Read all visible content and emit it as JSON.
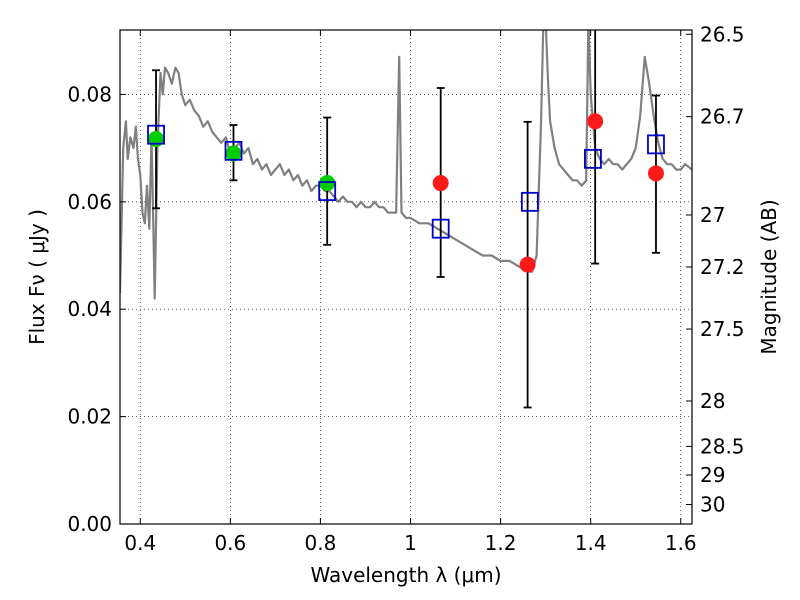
{
  "chart_data": {
    "type": "scatter",
    "xlabel": "Wavelength  λ (μm)",
    "ylabel": "Flux  Fν  ( μJy )",
    "y2label": "Magnitude (AB)",
    "xlim": [
      0.355,
      1.625
    ],
    "ylim": [
      0.0,
      0.092
    ],
    "grid": true,
    "x_ticks": [
      {
        "value": 0.4,
        "label": "0.4"
      },
      {
        "value": 0.6,
        "label": "0.6"
      },
      {
        "value": 0.8,
        "label": "0.8"
      },
      {
        "value": 1.0,
        "label": "1"
      },
      {
        "value": 1.2,
        "label": "1.2"
      },
      {
        "value": 1.4,
        "label": "1.4"
      },
      {
        "value": 1.6,
        "label": "1.6"
      }
    ],
    "y_ticks": [
      {
        "value": 0.0,
        "label": "0.00"
      },
      {
        "value": 0.02,
        "label": "0.02"
      },
      {
        "value": 0.04,
        "label": "0.04"
      },
      {
        "value": 0.06,
        "label": "0.06"
      },
      {
        "value": 0.08,
        "label": "0.08"
      }
    ],
    "y2_ticks": [
      {
        "value": 26.5,
        "label": "26.5"
      },
      {
        "value": 26.7,
        "label": "26.7"
      },
      {
        "value": 27.0,
        "label": "27"
      },
      {
        "value": 27.2,
        "label": "27.2"
      },
      {
        "value": 27.5,
        "label": "27.5"
      },
      {
        "value": 28.0,
        "label": "28"
      },
      {
        "value": 28.5,
        "label": "28.5"
      },
      {
        "value": 29.0,
        "label": "29"
      },
      {
        "value": 30.0,
        "label": "30"
      }
    ],
    "series": [
      {
        "kind": "line",
        "color": "#808080",
        "points": [
          [
            0.355,
            0.043
          ],
          [
            0.362,
            0.07
          ],
          [
            0.368,
            0.075
          ],
          [
            0.372,
            0.068
          ],
          [
            0.378,
            0.072
          ],
          [
            0.385,
            0.07
          ],
          [
            0.39,
            0.074
          ],
          [
            0.395,
            0.068
          ],
          [
            0.4,
            0.065
          ],
          [
            0.405,
            0.058
          ],
          [
            0.41,
            0.056
          ],
          [
            0.415,
            0.063
          ],
          [
            0.42,
            0.055
          ],
          [
            0.425,
            0.072
          ],
          [
            0.428,
            0.06
          ],
          [
            0.432,
            0.042
          ],
          [
            0.438,
            0.07
          ],
          [
            0.445,
            0.084
          ],
          [
            0.45,
            0.08
          ],
          [
            0.455,
            0.085
          ],
          [
            0.462,
            0.084
          ],
          [
            0.47,
            0.082
          ],
          [
            0.478,
            0.085
          ],
          [
            0.485,
            0.084
          ],
          [
            0.492,
            0.08
          ],
          [
            0.5,
            0.078
          ],
          [
            0.51,
            0.079
          ],
          [
            0.52,
            0.077
          ],
          [
            0.53,
            0.076
          ],
          [
            0.54,
            0.074
          ],
          [
            0.55,
            0.075
          ],
          [
            0.56,
            0.073
          ],
          [
            0.57,
            0.072
          ],
          [
            0.58,
            0.071
          ],
          [
            0.59,
            0.072
          ],
          [
            0.6,
            0.069
          ],
          [
            0.61,
            0.07
          ],
          [
            0.62,
            0.071
          ],
          [
            0.63,
            0.069
          ],
          [
            0.64,
            0.07
          ],
          [
            0.65,
            0.067
          ],
          [
            0.66,
            0.068
          ],
          [
            0.67,
            0.066
          ],
          [
            0.68,
            0.067
          ],
          [
            0.69,
            0.065
          ],
          [
            0.7,
            0.066
          ],
          [
            0.71,
            0.067
          ],
          [
            0.72,
            0.065
          ],
          [
            0.73,
            0.066
          ],
          [
            0.74,
            0.064
          ],
          [
            0.75,
            0.065
          ],
          [
            0.76,
            0.063
          ],
          [
            0.77,
            0.064
          ],
          [
            0.78,
            0.062
          ],
          [
            0.79,
            0.063
          ],
          [
            0.8,
            0.063
          ],
          [
            0.81,
            0.062
          ],
          [
            0.82,
            0.062
          ],
          [
            0.83,
            0.061
          ],
          [
            0.84,
            0.06
          ],
          [
            0.85,
            0.061
          ],
          [
            0.86,
            0.06
          ],
          [
            0.87,
            0.06
          ],
          [
            0.88,
            0.059
          ],
          [
            0.89,
            0.06
          ],
          [
            0.9,
            0.059
          ],
          [
            0.91,
            0.059
          ],
          [
            0.92,
            0.06
          ],
          [
            0.93,
            0.059
          ],
          [
            0.94,
            0.059
          ],
          [
            0.95,
            0.058
          ],
          [
            0.96,
            0.058
          ],
          [
            0.968,
            0.058
          ],
          [
            0.975,
            0.087
          ],
          [
            0.98,
            0.058
          ],
          [
            0.99,
            0.057
          ],
          [
            1.0,
            0.057
          ],
          [
            1.02,
            0.056
          ],
          [
            1.04,
            0.056
          ],
          [
            1.06,
            0.055
          ],
          [
            1.08,
            0.054
          ],
          [
            1.1,
            0.053
          ],
          [
            1.12,
            0.052
          ],
          [
            1.14,
            0.051
          ],
          [
            1.16,
            0.05
          ],
          [
            1.18,
            0.05
          ],
          [
            1.2,
            0.049
          ],
          [
            1.22,
            0.049
          ],
          [
            1.24,
            0.048
          ],
          [
            1.26,
            0.047
          ],
          [
            1.27,
            0.047
          ],
          [
            1.28,
            0.05
          ],
          [
            1.29,
            0.075
          ],
          [
            1.295,
            0.094
          ],
          [
            1.3,
            0.094
          ],
          [
            1.305,
            0.083
          ],
          [
            1.31,
            0.075
          ],
          [
            1.32,
            0.07
          ],
          [
            1.33,
            0.067
          ],
          [
            1.34,
            0.066
          ],
          [
            1.35,
            0.065
          ],
          [
            1.36,
            0.064
          ],
          [
            1.37,
            0.064
          ],
          [
            1.38,
            0.063
          ],
          [
            1.39,
            0.064
          ],
          [
            1.395,
            0.094
          ],
          [
            1.4,
            0.08
          ],
          [
            1.41,
            0.07
          ],
          [
            1.42,
            0.068
          ],
          [
            1.43,
            0.067
          ],
          [
            1.44,
            0.068
          ],
          [
            1.45,
            0.067
          ],
          [
            1.46,
            0.067
          ],
          [
            1.47,
            0.066
          ],
          [
            1.48,
            0.067
          ],
          [
            1.49,
            0.068
          ],
          [
            1.5,
            0.07
          ],
          [
            1.51,
            0.076
          ],
          [
            1.52,
            0.087
          ],
          [
            1.53,
            0.082
          ],
          [
            1.54,
            0.076
          ],
          [
            1.55,
            0.071
          ],
          [
            1.56,
            0.068
          ],
          [
            1.57,
            0.067
          ],
          [
            1.58,
            0.067
          ],
          [
            1.59,
            0.066
          ],
          [
            1.6,
            0.066
          ],
          [
            1.61,
            0.067
          ],
          [
            1.625,
            0.066
          ]
        ]
      },
      {
        "kind": "open-square",
        "color": "#0000cc",
        "points": [
          [
            0.435,
            0.0725
          ],
          [
            0.607,
            0.0695
          ],
          [
            0.815,
            0.062
          ],
          [
            1.067,
            0.055
          ],
          [
            1.265,
            0.06
          ],
          [
            1.405,
            0.068
          ],
          [
            1.545,
            0.0707
          ]
        ]
      },
      {
        "kind": "filled-circle",
        "color": "#00cc00",
        "points": [
          [
            0.435,
            0.0717
          ],
          [
            0.607,
            0.069
          ],
          [
            0.815,
            0.0635
          ]
        ]
      },
      {
        "kind": "filled-circle",
        "color": "#ff1a1a",
        "points": [
          [
            1.067,
            0.0635
          ],
          [
            1.26,
            0.0483
          ],
          [
            1.41,
            0.075
          ],
          [
            1.545,
            0.0653
          ]
        ]
      }
    ],
    "error_bars": [
      {
        "x": 0.435,
        "low": 0.0588,
        "high": 0.0845
      },
      {
        "x": 0.607,
        "low": 0.064,
        "high": 0.0743
      },
      {
        "x": 0.815,
        "low": 0.052,
        "high": 0.0757
      },
      {
        "x": 1.067,
        "low": 0.046,
        "high": 0.0812
      },
      {
        "x": 1.26,
        "low": 0.0217,
        "high": 0.0749
      },
      {
        "x": 1.41,
        "low": 0.0485,
        "high": 0.0935
      },
      {
        "x": 1.545,
        "low": 0.0505,
        "high": 0.0798
      }
    ]
  }
}
